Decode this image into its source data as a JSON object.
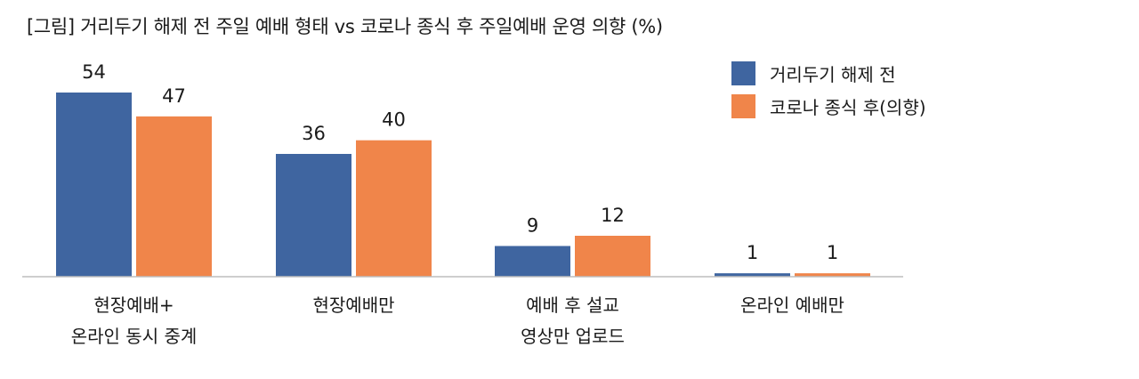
{
  "title": "[그림] 거리두기 해제 전 주일 예배 형태 vs 코로나 종식 후 주일예배 운영 의향 (%)",
  "chart_data": {
    "type": "bar",
    "title": "[그림] 거리두기 해제 전 주일 예배 형태 vs 코로나 종식 후 주일예배 운영 의향 (%)",
    "categories": [
      [
        "현장예배+",
        "온라인 동시 중계"
      ],
      [
        "현장예배만"
      ],
      [
        "예배 후 설교",
        "영상만 업로드"
      ],
      [
        "온라인 예배만"
      ]
    ],
    "series": [
      {
        "name": "거리두기 해제 전",
        "color": "#3f65a0",
        "values": [
          54,
          36,
          9,
          1
        ]
      },
      {
        "name": "코로나 종식 후(의향)",
        "color": "#f0854a",
        "values": [
          47,
          40,
          12,
          1
        ]
      }
    ],
    "ylim": [
      0,
      60
    ],
    "grid": false,
    "legend_position": "top-right",
    "xlabel": "",
    "ylabel": ""
  }
}
